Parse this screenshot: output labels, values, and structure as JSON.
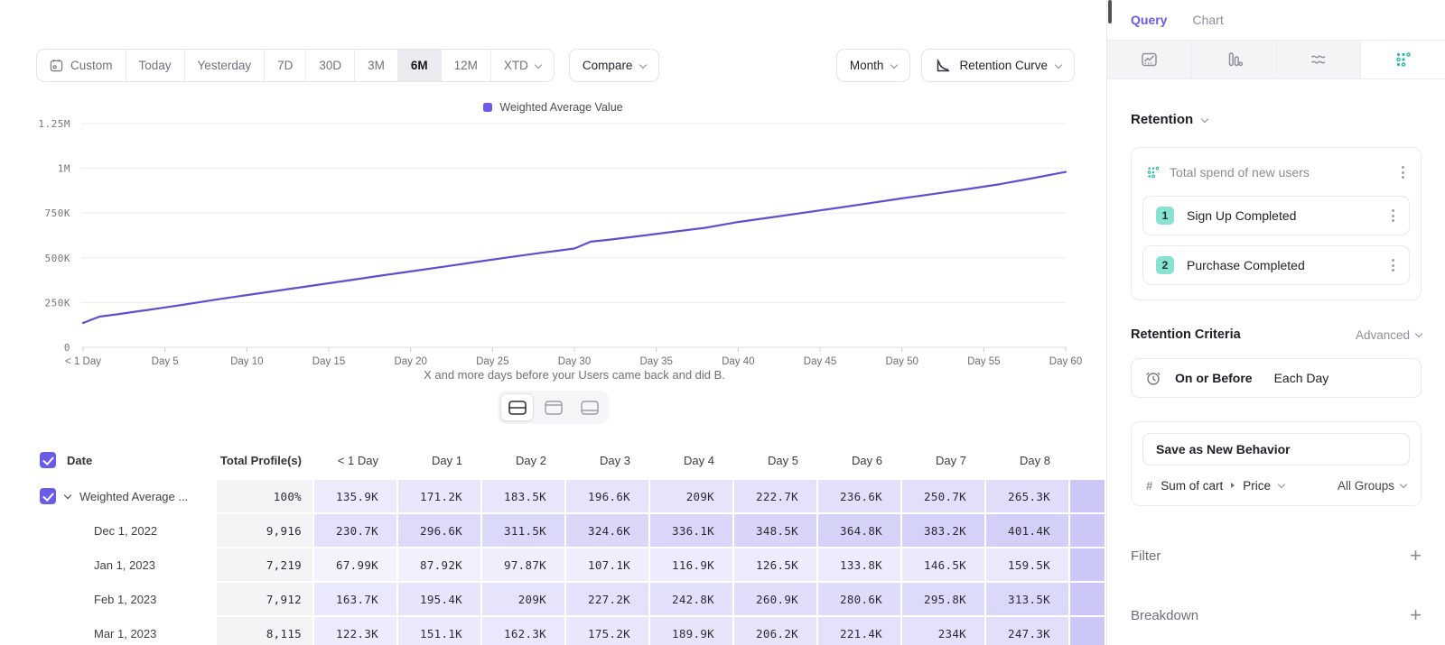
{
  "colors": {
    "accent_purple": "#6A5CE8",
    "line_purple": "#5B51CE",
    "teal": "#2FB8A8",
    "badge_teal_bg": "#87E2D2",
    "cell_purple_rgb": "104,92,232"
  },
  "toolbar": {
    "ranges": [
      {
        "label": "Custom",
        "icon": "calendar-icon"
      },
      {
        "label": "Today"
      },
      {
        "label": "Yesterday"
      },
      {
        "label": "7D"
      },
      {
        "label": "30D"
      },
      {
        "label": "3M"
      },
      {
        "label": "6M",
        "selected": true
      },
      {
        "label": "12M"
      },
      {
        "label": "XTD",
        "chevron": true
      }
    ],
    "compare": "Compare",
    "granularity": "Month",
    "chart_type": "Retention Curve"
  },
  "chart_data": {
    "type": "line",
    "title": "",
    "xlabel": "X and more days before your Users came back and did B.",
    "ylabel": "",
    "grid": true,
    "legend_position": "top-center",
    "xlim_days": [
      0,
      60
    ],
    "ylim_K": [
      0,
      1250
    ],
    "legend": [
      {
        "label": "Weighted Average Value",
        "color": "#6A5CE8"
      }
    ],
    "y_ticks": [
      {
        "value": 0,
        "label": "0"
      },
      {
        "value": 250,
        "label": "250K"
      },
      {
        "value": 500,
        "label": "500K"
      },
      {
        "value": 750,
        "label": "750K"
      },
      {
        "value": 1000,
        "label": "1M"
      },
      {
        "value": 1250,
        "label": "1.25M"
      }
    ],
    "x_ticks": [
      {
        "day": 0,
        "label": "< 1 Day"
      },
      {
        "day": 5,
        "label": "Day 5"
      },
      {
        "day": 10,
        "label": "Day 10"
      },
      {
        "day": 15,
        "label": "Day 15"
      },
      {
        "day": 20,
        "label": "Day 20"
      },
      {
        "day": 25,
        "label": "Day 25"
      },
      {
        "day": 30,
        "label": "Day 30"
      },
      {
        "day": 35,
        "label": "Day 35"
      },
      {
        "day": 40,
        "label": "Day 40"
      },
      {
        "day": 45,
        "label": "Day 45"
      },
      {
        "day": 50,
        "label": "Day 50"
      },
      {
        "day": 55,
        "label": "Day 55"
      },
      {
        "day": 60,
        "label": "Day 60"
      }
    ],
    "series": [
      {
        "name": "Weighted Average Value",
        "color": "#5B51CE",
        "points_day_valueK": [
          [
            0,
            135.9
          ],
          [
            1,
            171.2
          ],
          [
            2,
            183.5
          ],
          [
            3,
            196.6
          ],
          [
            4,
            209
          ],
          [
            5,
            222.7
          ],
          [
            6,
            236.6
          ],
          [
            7,
            250.7
          ],
          [
            8,
            265.3
          ],
          [
            10,
            292
          ],
          [
            12,
            318
          ],
          [
            14,
            345
          ],
          [
            16,
            371
          ],
          [
            18,
            398
          ],
          [
            20,
            424
          ],
          [
            22,
            450
          ],
          [
            24,
            477
          ],
          [
            26,
            503
          ],
          [
            28,
            528
          ],
          [
            29,
            540
          ],
          [
            30,
            552
          ],
          [
            31,
            590
          ],
          [
            32,
            600
          ],
          [
            34,
            622
          ],
          [
            36,
            645
          ],
          [
            38,
            668
          ],
          [
            40,
            700
          ],
          [
            42,
            726
          ],
          [
            44,
            752
          ],
          [
            46,
            778
          ],
          [
            48,
            805
          ],
          [
            50,
            832
          ],
          [
            52,
            858
          ],
          [
            54,
            884
          ],
          [
            56,
            912
          ],
          [
            58,
            945
          ],
          [
            60,
            980
          ]
        ]
      }
    ]
  },
  "view_toggle": {
    "options": [
      "split-view",
      "chart-only-view",
      "table-only-view"
    ],
    "selected": "split-view"
  },
  "table": {
    "headers": [
      "Date",
      "Total Profile(s)",
      "< 1 Day",
      "Day 1",
      "Day 2",
      "Day 3",
      "Day 4",
      "Day 5",
      "Day 6",
      "Day 7",
      "Day 8"
    ],
    "rows": [
      {
        "label": "Weighted Average ...",
        "summary": true,
        "checked": true,
        "total": "100%",
        "values": [
          "135.9K",
          "171.2K",
          "183.5K",
          "196.6K",
          "209K",
          "222.7K",
          "236.6K",
          "250.7K",
          "265.3K"
        ]
      },
      {
        "label": "Dec 1, 2022",
        "total": "9,916",
        "values": [
          "230.7K",
          "296.6K",
          "311.5K",
          "324.6K",
          "336.1K",
          "348.5K",
          "364.8K",
          "383.2K",
          "401.4K"
        ]
      },
      {
        "label": "Jan 1, 2023",
        "total": "7,219",
        "values": [
          "67.99K",
          "87.92K",
          "97.87K",
          "107.1K",
          "116.9K",
          "126.5K",
          "133.8K",
          "146.5K",
          "159.5K"
        ]
      },
      {
        "label": "Feb 1, 2023",
        "total": "7,912",
        "values": [
          "163.7K",
          "195.4K",
          "209K",
          "227.2K",
          "242.8K",
          "260.9K",
          "280.6K",
          "295.8K",
          "313.5K"
        ]
      },
      {
        "label": "Mar 1, 2023",
        "total": "8,115",
        "values": [
          "122.3K",
          "151.1K",
          "162.3K",
          "175.2K",
          "189.9K",
          "206.2K",
          "221.4K",
          "234K",
          "247.3K"
        ]
      }
    ]
  },
  "panel": {
    "tabs": {
      "query": "Query",
      "chart": "Chart",
      "active": "Query"
    },
    "icon_tabs": [
      "insights-icon",
      "funnels-icon",
      "flows-icon",
      "retention-icon"
    ],
    "active_icon_tab": "retention-icon",
    "section": {
      "title": "Retention"
    },
    "behavior": {
      "title": "Total spend of new users",
      "icon": "retention-dots-icon",
      "steps": [
        {
          "num": "1",
          "label": "Sign Up Completed"
        },
        {
          "num": "2",
          "label": "Purchase Completed"
        }
      ]
    },
    "criteria": {
      "heading": "Retention Criteria",
      "mode": "Advanced",
      "icon": "alarm-clock-icon",
      "condition": "On or Before",
      "window": "Each Day"
    },
    "save_button": "Save as New Behavior",
    "metric": {
      "hash": "#",
      "property": "Sum of cart",
      "subproperty": "Price",
      "group": "All Groups"
    },
    "filter": {
      "label": "Filter"
    },
    "breakdown": {
      "label": "Breakdown"
    }
  }
}
